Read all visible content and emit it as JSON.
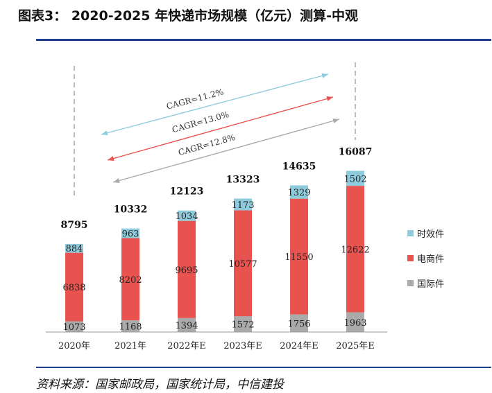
{
  "header": {
    "title": "图表3：  2020-2025 年快递市场规模（亿元）测算-中观"
  },
  "footer": {
    "source": "资料来源：国家邮政局，国家统计局，中信建投"
  },
  "chart_data": {
    "type": "bar",
    "stacked": true,
    "categories": [
      "2020年",
      "2021年",
      "2022年E",
      "2023年E",
      "2024年E",
      "2025年E"
    ],
    "series": [
      {
        "name": "国际件",
        "values": [
          1073,
          1168,
          1394,
          1572,
          1756,
          1963
        ],
        "color": "#aaaaaa"
      },
      {
        "name": "电商件",
        "values": [
          6838,
          8202,
          9695,
          10577,
          11550,
          12622
        ],
        "color": "#e8534f"
      },
      {
        "name": "时效件",
        "values": [
          884,
          963,
          1034,
          1173,
          1329,
          1502
        ],
        "color": "#8ecbdc"
      }
    ],
    "totals": [
      8795,
      10332,
      12123,
      13323,
      14635,
      16087
    ],
    "annotations": [
      {
        "text": "CAGR=11.2%",
        "color": "#8ecbdc"
      },
      {
        "text": "CAGR=13.0%",
        "color": "#e8534f"
      },
      {
        "text": "CAGR=12.8%",
        "color": "#aaaaaa"
      }
    ],
    "legend_position": "right",
    "grid": false,
    "axis_max": 17500
  }
}
